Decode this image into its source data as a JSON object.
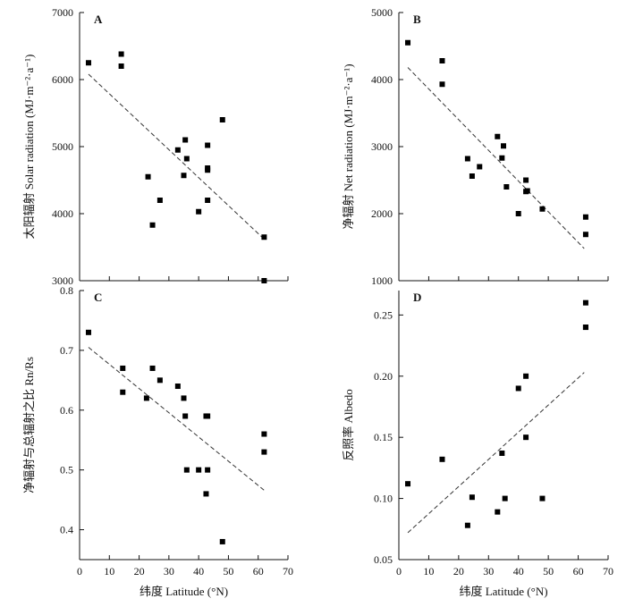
{
  "chart_data": [
    {
      "type": "scatter",
      "panel": "A",
      "ylabel": "太阳辐射 Solar radiation (MJ·m⁻²·a⁻¹)",
      "xlabel": "",
      "xlim": [
        0,
        70
      ],
      "ylim": [
        3000,
        7000
      ],
      "xticks": [],
      "yticks": [
        "3000",
        "4000",
        "5000",
        "6000",
        "7000"
      ],
      "points": [
        {
          "x": 3,
          "y": 6250
        },
        {
          "x": 14,
          "y": 6380
        },
        {
          "x": 14,
          "y": 6200
        },
        {
          "x": 23,
          "y": 4550
        },
        {
          "x": 24.5,
          "y": 3830
        },
        {
          "x": 27,
          "y": 4200
        },
        {
          "x": 33,
          "y": 4950
        },
        {
          "x": 35.5,
          "y": 5100
        },
        {
          "x": 36,
          "y": 4820
        },
        {
          "x": 35,
          "y": 4570
        },
        {
          "x": 40,
          "y": 4030
        },
        {
          "x": 43,
          "y": 5020
        },
        {
          "x": 43,
          "y": 4680
        },
        {
          "x": 43,
          "y": 4650
        },
        {
          "x": 43,
          "y": 4200
        },
        {
          "x": 48,
          "y": 5400
        },
        {
          "x": 62,
          "y": 3650
        },
        {
          "x": 62,
          "y": 3000
        }
      ],
      "fit_line": {
        "x": [
          3,
          62
        ],
        "y": [
          6080,
          3620
        ]
      }
    },
    {
      "type": "scatter",
      "panel": "B",
      "ylabel": "净辐射 Net radiation (MJ·m⁻²·a⁻¹)",
      "xlabel": "",
      "xlim": [
        0,
        70
      ],
      "ylim": [
        1000,
        5000
      ],
      "xticks": [],
      "yticks": [
        "1000",
        "2000",
        "3000",
        "4000",
        "5000"
      ],
      "points": [
        {
          "x": 3,
          "y": 4550
        },
        {
          "x": 14.5,
          "y": 4280
        },
        {
          "x": 14.5,
          "y": 3930
        },
        {
          "x": 23,
          "y": 2820
        },
        {
          "x": 24.5,
          "y": 2560
        },
        {
          "x": 27,
          "y": 2700
        },
        {
          "x": 33,
          "y": 3150
        },
        {
          "x": 34.5,
          "y": 2830
        },
        {
          "x": 35,
          "y": 3010
        },
        {
          "x": 36,
          "y": 2400
        },
        {
          "x": 40,
          "y": 2000
        },
        {
          "x": 42.5,
          "y": 2500
        },
        {
          "x": 42.5,
          "y": 2330
        },
        {
          "x": 43,
          "y": 2340
        },
        {
          "x": 48,
          "y": 2070
        },
        {
          "x": 62.5,
          "y": 1950
        },
        {
          "x": 62.5,
          "y": 1690
        }
      ],
      "fit_line": {
        "x": [
          3,
          62
        ],
        "y": [
          4180,
          1480
        ]
      }
    },
    {
      "type": "scatter",
      "panel": "C",
      "ylabel": "净辐射与总辐射之比 Rn/Rs",
      "xlabel": "纬度 Latitude (°N)",
      "xlim": [
        0,
        70
      ],
      "ylim": [
        0.35,
        0.8
      ],
      "xticks": [
        "0",
        "10",
        "20",
        "30",
        "40",
        "50",
        "60",
        "70"
      ],
      "yticks": [
        "0.4",
        "0.5",
        "0.6",
        "0.7",
        "0.8"
      ],
      "points": [
        {
          "x": 3,
          "y": 0.73
        },
        {
          "x": 14.5,
          "y": 0.67
        },
        {
          "x": 14.5,
          "y": 0.63
        },
        {
          "x": 22.5,
          "y": 0.62
        },
        {
          "x": 24.5,
          "y": 0.67
        },
        {
          "x": 27,
          "y": 0.65
        },
        {
          "x": 33,
          "y": 0.64
        },
        {
          "x": 35,
          "y": 0.62
        },
        {
          "x": 35.5,
          "y": 0.59
        },
        {
          "x": 36,
          "y": 0.5
        },
        {
          "x": 40,
          "y": 0.5
        },
        {
          "x": 42.5,
          "y": 0.59
        },
        {
          "x": 43,
          "y": 0.59
        },
        {
          "x": 42.5,
          "y": 0.46
        },
        {
          "x": 43,
          "y": 0.5
        },
        {
          "x": 48,
          "y": 0.38
        },
        {
          "x": 62,
          "y": 0.56
        },
        {
          "x": 62,
          "y": 0.53
        }
      ],
      "fit_line": {
        "x": [
          3,
          62
        ],
        "y": [
          0.705,
          0.466
        ]
      }
    },
    {
      "type": "scatter",
      "panel": "D",
      "ylabel": "反照率 Albedo",
      "xlabel": "纬度 Latitude (°N)",
      "xlim": [
        0,
        70
      ],
      "ylim": [
        0.05,
        0.27
      ],
      "xticks": [
        "0",
        "10",
        "20",
        "30",
        "40",
        "50",
        "60",
        "70"
      ],
      "yticks": [
        "0.05",
        "0.10",
        "0.15",
        "0.20",
        "0.25"
      ],
      "points": [
        {
          "x": 3,
          "y": 0.112
        },
        {
          "x": 14.5,
          "y": 0.132
        },
        {
          "x": 23,
          "y": 0.078
        },
        {
          "x": 24.5,
          "y": 0.101
        },
        {
          "x": 33,
          "y": 0.089
        },
        {
          "x": 34.5,
          "y": 0.137
        },
        {
          "x": 35.5,
          "y": 0.1
        },
        {
          "x": 40,
          "y": 0.19
        },
        {
          "x": 42.5,
          "y": 0.2
        },
        {
          "x": 42.5,
          "y": 0.15
        },
        {
          "x": 48,
          "y": 0.1
        },
        {
          "x": 62.5,
          "y": 0.26
        },
        {
          "x": 62.5,
          "y": 0.24
        },
        {
          "x": 62.5,
          "y": 0.24
        }
      ],
      "fit_line": {
        "x": [
          3,
          62
        ],
        "y": [
          0.072,
          0.203
        ]
      }
    }
  ]
}
